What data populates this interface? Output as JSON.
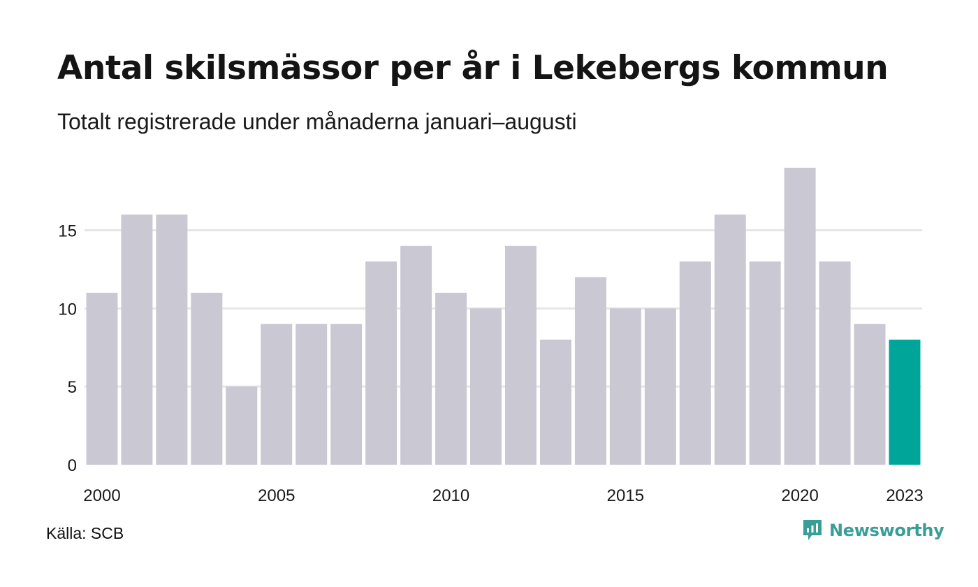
{
  "header": {
    "title": "Antal skilsmässor per år i Lekebergs kommun",
    "subtitle": "Totalt registrerade under månaderna januari–augusti"
  },
  "footer": {
    "source": "Källa: SCB",
    "brand": "Newsworthy"
  },
  "colors": {
    "bar": "#c9c8d3",
    "highlight": "#00a59a",
    "grid": "#e6e6ea",
    "brand": "#3a9e98"
  },
  "chart_data": {
    "type": "bar",
    "title": "Antal skilsmässor per år i Lekebergs kommun",
    "subtitle": "Totalt registrerade under månaderna januari–augusti",
    "xlabel": "",
    "ylabel": "",
    "categories": [
      2000,
      2001,
      2002,
      2003,
      2004,
      2005,
      2006,
      2007,
      2008,
      2009,
      2010,
      2011,
      2012,
      2013,
      2014,
      2015,
      2016,
      2017,
      2018,
      2019,
      2020,
      2021,
      2022,
      2023
    ],
    "values": [
      11,
      16,
      16,
      11,
      5,
      9,
      9,
      9,
      13,
      14,
      11,
      10,
      14,
      8,
      12,
      10,
      10,
      13,
      16,
      13,
      19,
      13,
      9,
      8
    ],
    "highlight_category": 2023,
    "x_tick_labels": [
      "2000",
      "2005",
      "2010",
      "2015",
      "2020",
      "2023"
    ],
    "y_ticks": [
      0,
      5,
      10,
      15
    ],
    "ylim": [
      0,
      19
    ],
    "grid": true,
    "legend": "none"
  }
}
